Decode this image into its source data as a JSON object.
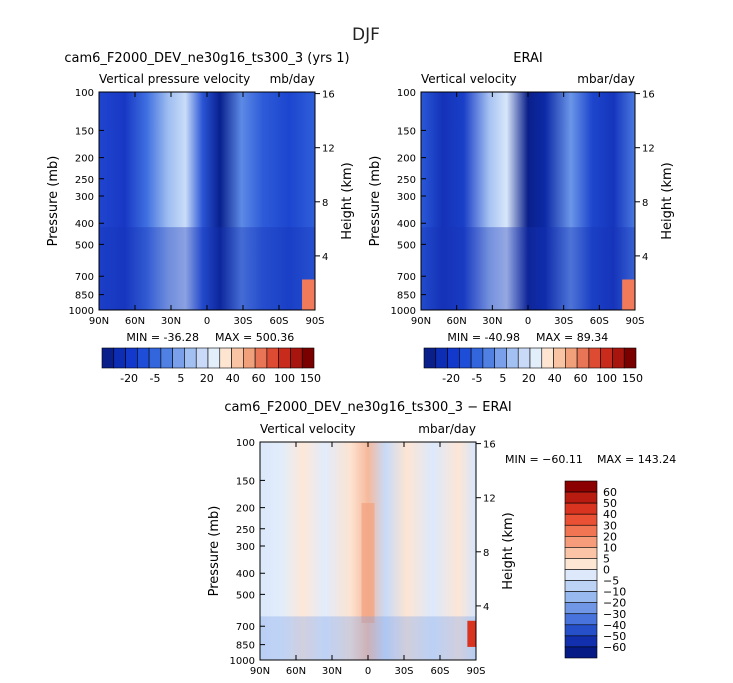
{
  "figure_title": "DJF",
  "colors": {
    "neg_deep": "#08306b",
    "neg_mid": "#4a7fe0",
    "neg_light": "#d8e8fb",
    "pos_light": "#fde5d2",
    "pos_deep": "#8b0000"
  },
  "chart_data": [
    {
      "id": "model",
      "type": "heatmap",
      "title": "cam6_F2000_DEV_ne30g16_ts300_3 (yrs 1)",
      "subtitle_left": "Vertical pressure velocity",
      "subtitle_right": "mb/day",
      "xlabel": "",
      "ylabel": "Pressure (mb)",
      "ylabel_right": "Height (km)",
      "x_ticks": [
        "90N",
        "60N",
        "30N",
        "0",
        "30S",
        "60S",
        "90S"
      ],
      "x_values": [
        90,
        60,
        30,
        0,
        -30,
        -60,
        -90
      ],
      "y_ticks": [
        100,
        150,
        200,
        250,
        300,
        400,
        500,
        700,
        850,
        1000
      ],
      "y_right_ticks": [
        "16",
        "12",
        "8",
        "4"
      ],
      "ylim": [
        1000,
        100
      ],
      "min_label": "MIN = -36.28",
      "max_label": "MAX = 500.36",
      "min": -36.28,
      "max": 500.36,
      "legend_ticks": [
        "-20",
        "-5",
        "5",
        "20",
        "40",
        "60",
        "100",
        "150"
      ],
      "legend_levels": [
        -30,
        -25,
        -20,
        -15,
        -10,
        -5,
        0,
        5,
        10,
        20,
        30,
        40,
        50,
        60,
        80,
        100,
        125,
        150
      ],
      "legend_colors": [
        "#0a1f8a",
        "#0d2db5",
        "#1238cc",
        "#1e4ed8",
        "#3366dd",
        "#4f80e2",
        "#7aa0eb",
        "#a3c0f2",
        "#c8daf7",
        "#e3eefb",
        "#fde5d2",
        "#f8c4a4",
        "#f1a07c",
        "#e87556",
        "#dd4b32",
        "#c82a1c",
        "#a8140e",
        "#7a0000"
      ]
    },
    {
      "id": "obs",
      "type": "heatmap",
      "title": "ERAI",
      "subtitle_left": "Vertical velocity",
      "subtitle_right": "mbar/day",
      "xlabel": "",
      "ylabel": "Pressure (mb)",
      "ylabel_right": "Height (km)",
      "x_ticks": [
        "90N",
        "60N",
        "30N",
        "0",
        "30S",
        "60S",
        "90S"
      ],
      "x_values": [
        90,
        60,
        30,
        0,
        -30,
        -60,
        -90
      ],
      "y_ticks": [
        100,
        150,
        200,
        250,
        300,
        400,
        500,
        700,
        850,
        1000
      ],
      "y_right_ticks": [
        "16",
        "12",
        "8",
        "4"
      ],
      "ylim": [
        1000,
        100
      ],
      "min_label": "MIN = -40.98",
      "max_label": "MAX = 89.34",
      "min": -40.98,
      "max": 89.34,
      "legend_ticks": [
        "-20",
        "-5",
        "5",
        "20",
        "40",
        "60",
        "100",
        "150"
      ],
      "legend_levels": [
        -30,
        -25,
        -20,
        -15,
        -10,
        -5,
        0,
        5,
        10,
        20,
        30,
        40,
        50,
        60,
        80,
        100,
        125,
        150
      ],
      "legend_colors": [
        "#0a1f8a",
        "#0d2db5",
        "#1238cc",
        "#1e4ed8",
        "#3366dd",
        "#4f80e2",
        "#7aa0eb",
        "#a3c0f2",
        "#c8daf7",
        "#e3eefb",
        "#fde5d2",
        "#f8c4a4",
        "#f1a07c",
        "#e87556",
        "#dd4b32",
        "#c82a1c",
        "#a8140e",
        "#7a0000"
      ]
    },
    {
      "id": "diff",
      "type": "heatmap",
      "title": "cam6_F2000_DEV_ne30g16_ts300_3 − ERAI",
      "subtitle_left": "Vertical velocity",
      "subtitle_right": "mbar/day",
      "xlabel": "",
      "ylabel": "Pressure (mb)",
      "ylabel_right": "Height (km)",
      "x_ticks": [
        "90N",
        "60N",
        "30N",
        "0",
        "30S",
        "60S",
        "90S"
      ],
      "x_values": [
        90,
        60,
        30,
        0,
        -30,
        -60,
        -90
      ],
      "y_ticks": [
        100,
        150,
        200,
        250,
        300,
        400,
        500,
        700,
        850,
        1000
      ],
      "y_right_ticks": [
        "16",
        "12",
        "8",
        "4"
      ],
      "ylim": [
        1000,
        100
      ],
      "min_label": "MIN = −60.11",
      "max_label": "MAX = 143.24",
      "min": -60.11,
      "max": 143.24,
      "legend_ticks": [
        "60",
        "50",
        "40",
        "30",
        "20",
        "10",
        "5",
        "0",
        "−5",
        "−10",
        "−20",
        "−30",
        "−40",
        "−50",
        "−60"
      ],
      "legend_colors": [
        "#8b0000",
        "#b81b10",
        "#d8341f",
        "#ea5034",
        "#f27553",
        "#f79c7a",
        "#fbc4a6",
        "#fde6d4",
        "#dde9fb",
        "#bcd3f6",
        "#98b8f0",
        "#6f97e6",
        "#4873dd",
        "#2650c9",
        "#1230ad",
        "#061a85"
      ]
    }
  ]
}
